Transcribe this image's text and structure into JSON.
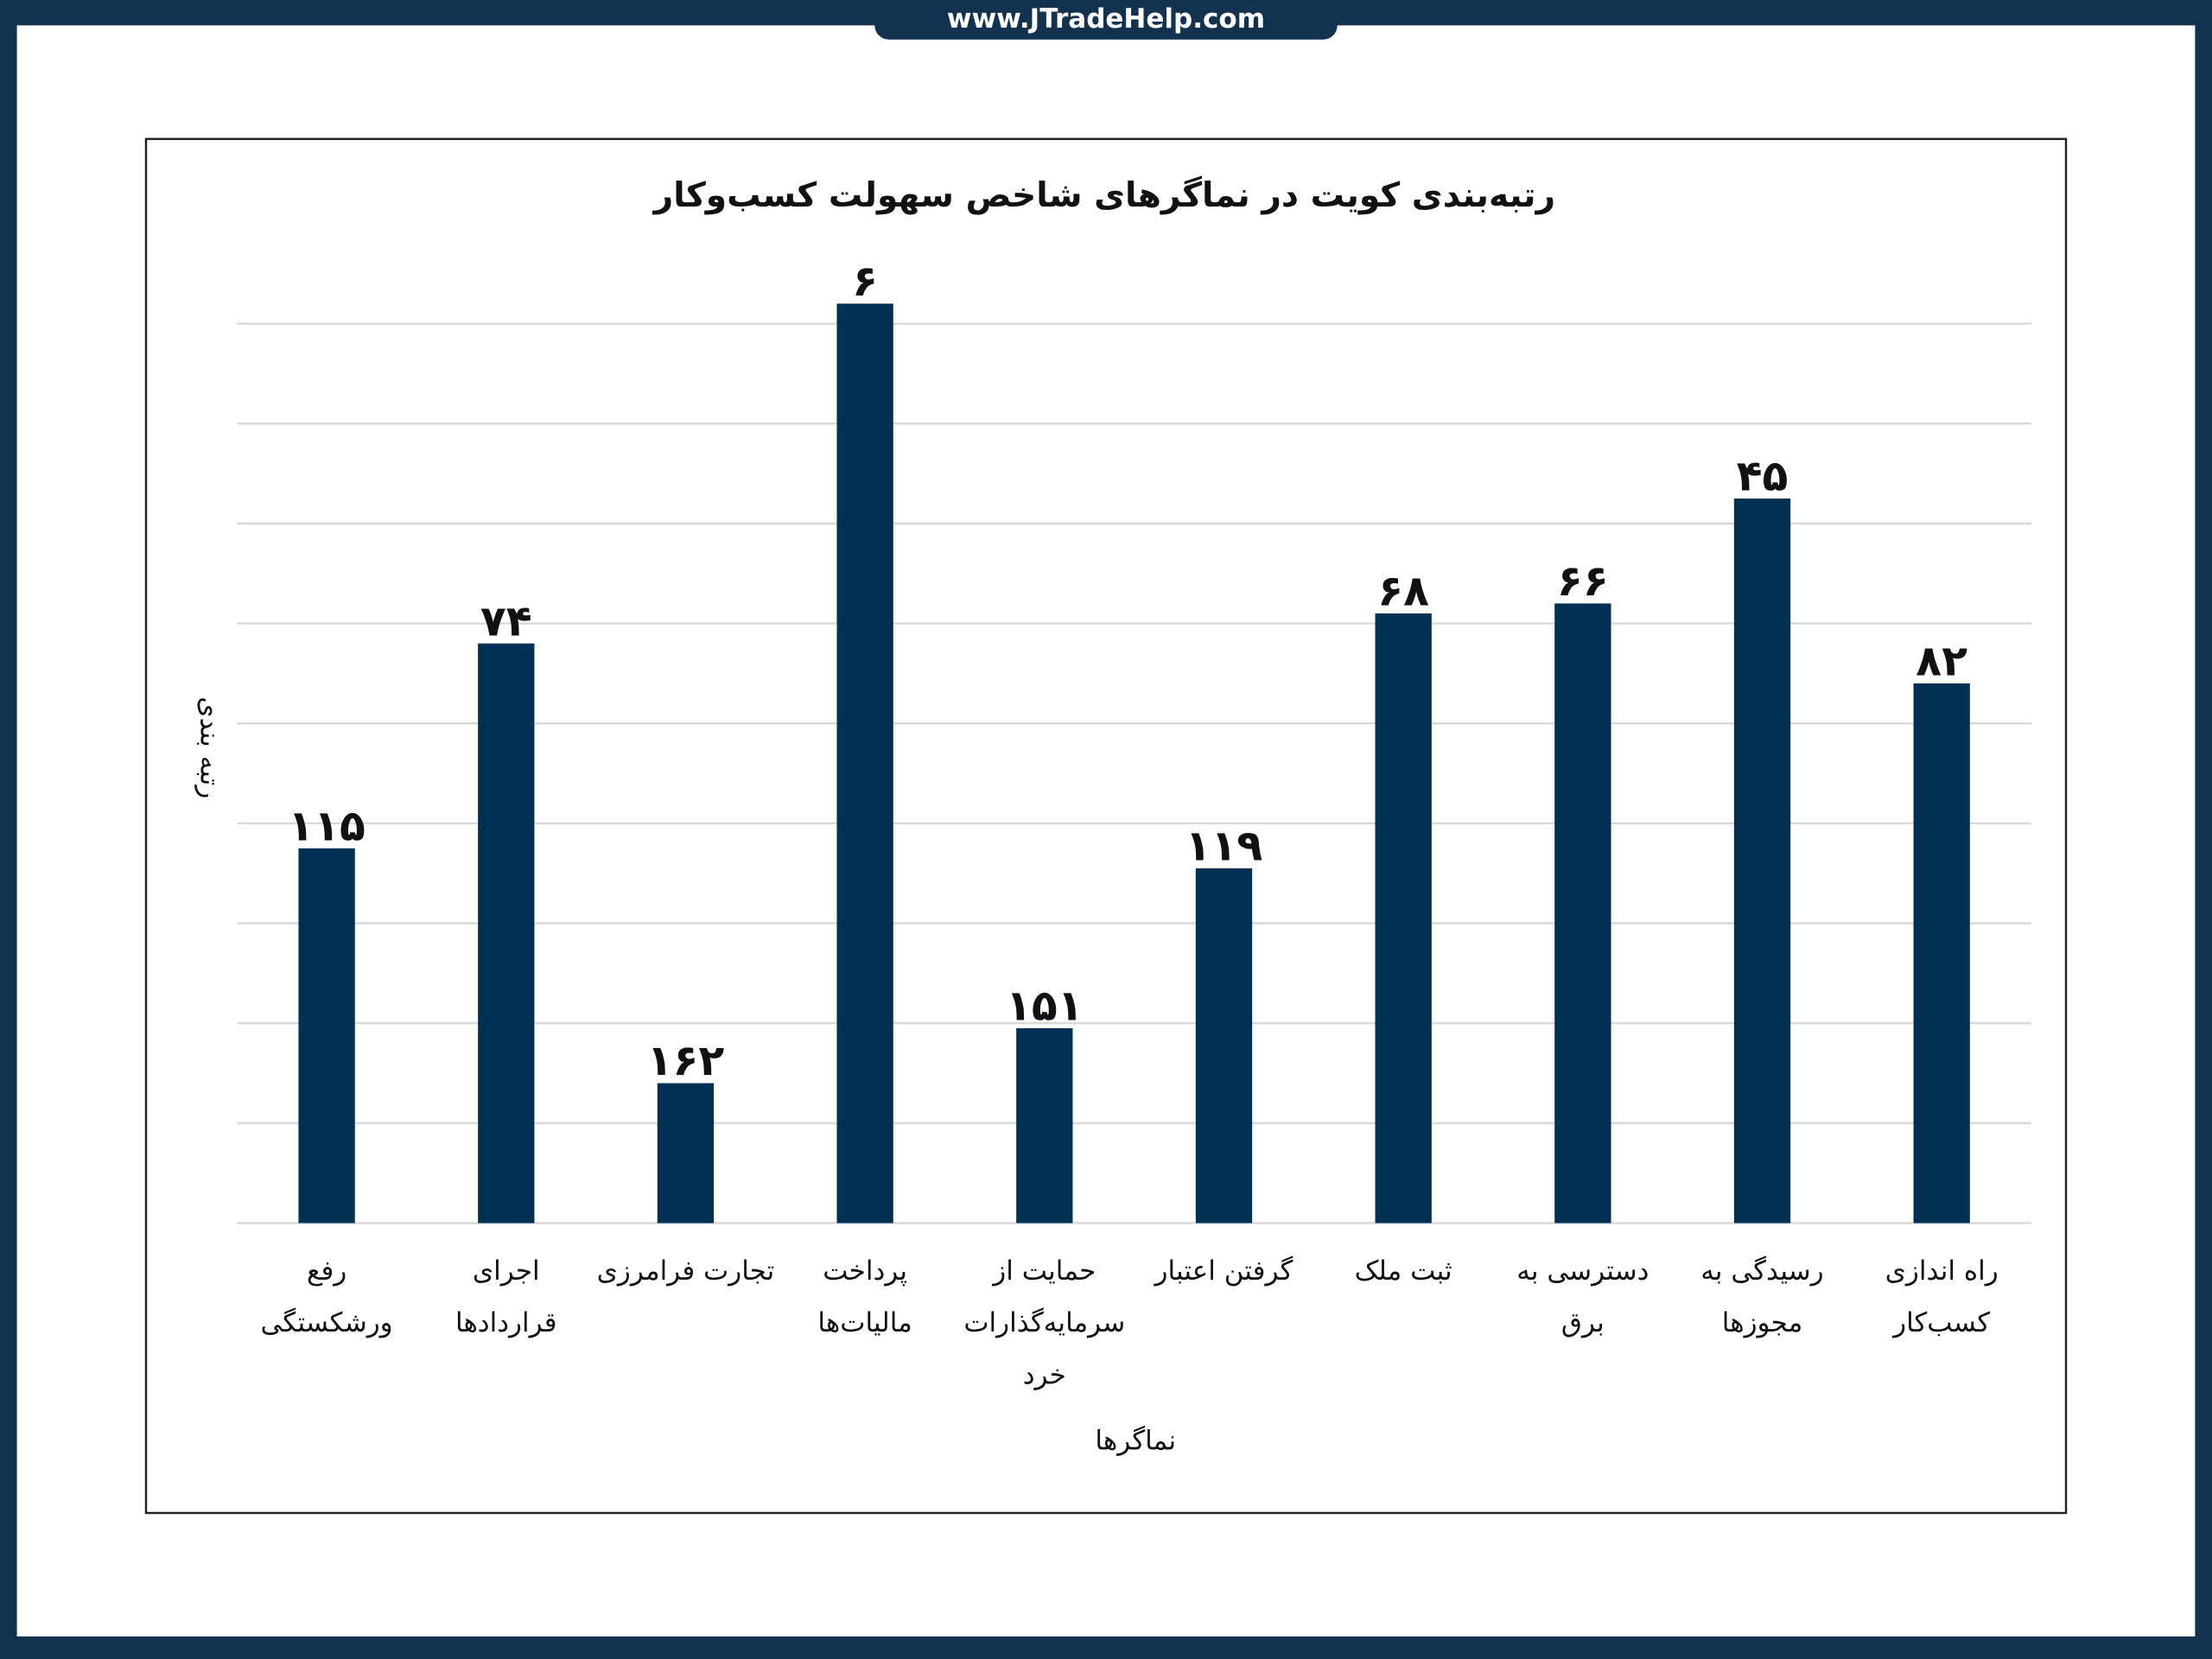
{
  "header": {
    "site": "www.JTradeHelp.com"
  },
  "chart_data": {
    "type": "bar",
    "title": "رتبه‌بندی کویت در نماگرهای شاخص سهولت کسب‌وکار",
    "x_label": "نماگرها",
    "y_label": "رتبه بندی",
    "categories": [
      "رفع\nورشکستگی",
      "اجرای\nقراردادها",
      "تجارت فرامرزی",
      "پرداخت\nمالیات‌ها",
      "حمایت از\nسرمایه‌گذارات\nخرد",
      "گرفتن اعتبار",
      "ثبت ملک",
      "دسترسی به\nبرق",
      "رسیدگی به\nمجوزها",
      "راه اندازی\nکسب‌کار"
    ],
    "values": [
      115,
      74,
      162,
      6,
      151,
      119,
      68,
      66,
      45,
      82
    ],
    "value_labels": [
      "۱۱۵",
      "۷۴",
      "۱۶۲",
      "۶",
      "۱۵۱",
      "۱۱۹",
      "۶۸",
      "۶۶",
      "۴۵",
      "۸۲"
    ],
    "color": "#003153",
    "ylim": [
      190,
      0
    ],
    "yticks": [
      10,
      30,
      50,
      70,
      90,
      110,
      130,
      150,
      170,
      190
    ],
    "grid": true
  }
}
